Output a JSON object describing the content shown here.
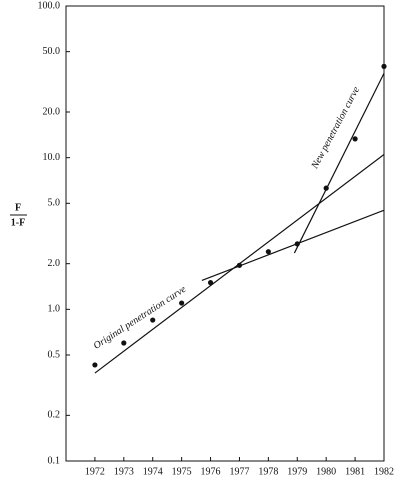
{
  "chart_data": {
    "type": "scatter",
    "y_label": {
      "numerator": "F",
      "denominator": "1-F"
    },
    "x": [
      1972,
      1973,
      1974,
      1975,
      1976,
      1977,
      1978,
      1979,
      1980,
      1981,
      1982
    ],
    "values": [
      0.43,
      0.6,
      0.85,
      1.1,
      1.5,
      1.95,
      2.4,
      2.7,
      6.3,
      13.3,
      40
    ],
    "lines": [
      {
        "x": [
          1972,
          1982
        ],
        "values": [
          0.38,
          10.5
        ]
      },
      {
        "x": [
          1975.7,
          1982
        ],
        "values": [
          1.55,
          4.5
        ]
      },
      {
        "x": [
          1978.9,
          1982
        ],
        "values": [
          2.35,
          36
        ]
      }
    ],
    "annotations": [
      "Original penetration curve",
      "New penetration curve"
    ],
    "color": "#111111",
    "log_y": true,
    "xlim": [
      1971,
      1982
    ],
    "xticks": [
      1972,
      1973,
      1974,
      1975,
      1976,
      1977,
      1978,
      1979,
      1980,
      1981,
      1982
    ],
    "ylim": [
      0.1,
      100
    ],
    "yticks": [
      {
        "value": 0.1,
        "label": "0.1"
      },
      {
        "value": 0.2,
        "label": "0.2"
      },
      {
        "value": 0.5,
        "label": "0.5"
      },
      {
        "value": 1,
        "label": "1.0"
      },
      {
        "value": 2,
        "label": "2.0"
      },
      {
        "value": 5,
        "label": "5.0"
      },
      {
        "value": 10,
        "label": "10.0"
      },
      {
        "value": 20,
        "label": "20.0"
      },
      {
        "value": 50,
        "label": "50.0"
      },
      {
        "value": 100,
        "label": "100.0"
      }
    ]
  }
}
